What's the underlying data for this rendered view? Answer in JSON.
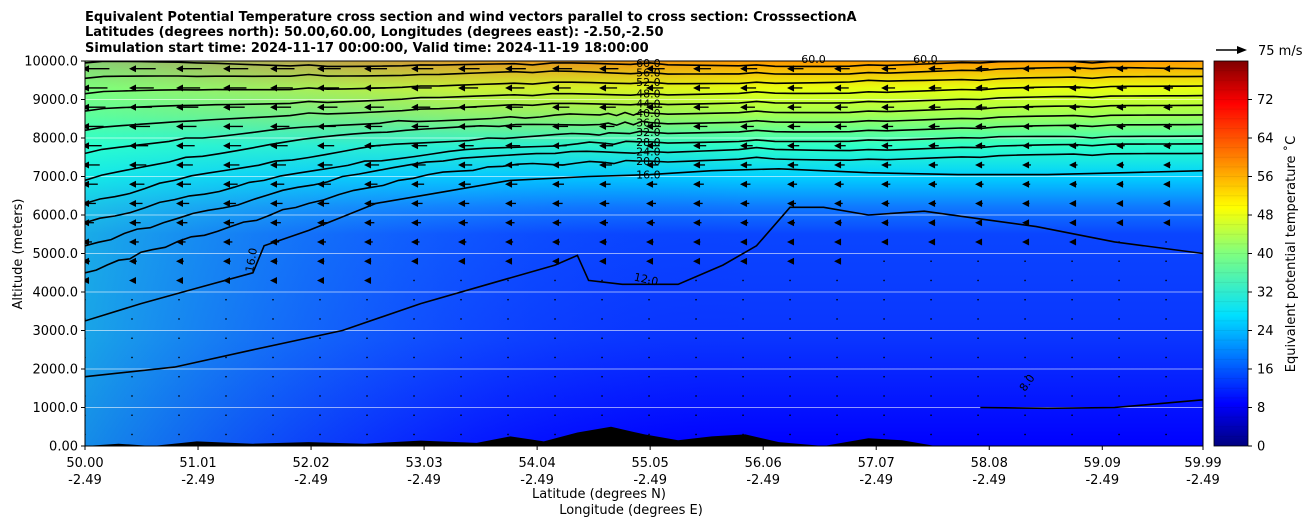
{
  "chart_data": {
    "type": "heatmap",
    "title_lines": [
      "Equivalent Potential Temperature cross section and wind vectors parallel to cross section: CrosssectionA",
      "Latitudes (degrees north): 50.00,60.00, Longitudes (degrees east): -2.50,-2.50",
      "Simulation start time: 2024-11-17 00:00:00, Valid time: 2024-11-19 18:00:00"
    ],
    "ylabel": "Altitude (meters)",
    "xlabel_line1": "Latitude (degrees N)",
    "xlabel_line2": "Longitude (degrees E)",
    "ylim": [
      0,
      10000
    ],
    "xlim": [
      50.0,
      59.99
    ],
    "y_ticks": [
      "0.00",
      "1000.0",
      "2000.0",
      "3000.0",
      "4000.0",
      "5000.0",
      "6000.0",
      "7000.0",
      "8000.0",
      "9000.0",
      "10000.0"
    ],
    "y_tick_values": [
      0,
      1000,
      2000,
      3000,
      4000,
      5000,
      6000,
      7000,
      8000,
      9000,
      10000
    ],
    "x_ticks": [
      {
        "lat": "50.00",
        "lon": "-2.49",
        "value": 50.0
      },
      {
        "lat": "51.01",
        "lon": "-2.49",
        "value": 51.01
      },
      {
        "lat": "52.02",
        "lon": "-2.49",
        "value": 52.02
      },
      {
        "lat": "53.03",
        "lon": "-2.49",
        "value": 53.03
      },
      {
        "lat": "54.04",
        "lon": "-2.49",
        "value": 54.04
      },
      {
        "lat": "55.05",
        "lon": "-2.49",
        "value": 55.05
      },
      {
        "lat": "56.06",
        "lon": "-2.49",
        "value": 56.06
      },
      {
        "lat": "57.07",
        "lon": "-2.49",
        "value": 57.07
      },
      {
        "lat": "58.08",
        "lon": "-2.49",
        "value": 58.08
      },
      {
        "lat": "59.09",
        "lon": "-2.49",
        "value": 59.09
      },
      {
        "lat": "59.99",
        "lon": "-2.49",
        "value": 59.99
      }
    ],
    "grid": "horizontal",
    "colorbar": {
      "label": "Equivalent potential temperature ˚C",
      "range": [
        0,
        80
      ],
      "step": 2,
      "ticks": [
        "0",
        "8",
        "16",
        "24",
        "32",
        "40",
        "48",
        "56",
        "64",
        "72"
      ],
      "tick_values": [
        0,
        8,
        16,
        24,
        32,
        40,
        48,
        56,
        64,
        72
      ],
      "colormap": "jet"
    },
    "quiver_key": "75 m/s",
    "contour_labels": [
      "60.0",
      "56.0",
      "52.0",
      "48.0",
      "44.0",
      "40.0",
      "36.0",
      "32.0",
      "28.0",
      "24.0",
      "20.0",
      "16.0",
      "12.0",
      "8.0"
    ],
    "contour_levels": [
      8,
      12,
      16,
      20,
      24,
      28,
      32,
      36,
      40,
      44,
      48,
      52,
      56,
      60
    ],
    "contour_series": [
      {
        "name": "8.0",
        "points": [
          [
            58.0,
            1000
          ],
          [
            58.6,
            980
          ],
          [
            59.2,
            1000
          ],
          [
            59.99,
            1200
          ]
        ]
      },
      {
        "name": "12.0",
        "points": [
          [
            50.0,
            1800
          ],
          [
            50.8,
            2050
          ],
          [
            51.5,
            2500
          ],
          [
            52.3,
            3000
          ],
          [
            53.0,
            3700
          ],
          [
            53.6,
            4200
          ],
          [
            54.2,
            4700
          ],
          [
            54.4,
            4950
          ],
          [
            54.5,
            4300
          ],
          [
            54.8,
            4200
          ],
          [
            55.3,
            4200
          ],
          [
            55.7,
            4700
          ],
          [
            56.0,
            5200
          ],
          [
            56.3,
            6200
          ],
          [
            56.6,
            6200
          ],
          [
            57.0,
            6000
          ],
          [
            57.5,
            6100
          ],
          [
            58.0,
            5900
          ],
          [
            58.5,
            5700
          ],
          [
            59.2,
            5300
          ],
          [
            59.99,
            5000
          ]
        ]
      },
      {
        "name": "16.0",
        "points": [
          [
            50.0,
            3250
          ],
          [
            50.5,
            3700
          ],
          [
            51.0,
            4100
          ],
          [
            51.5,
            4500
          ],
          [
            51.6,
            5200
          ],
          [
            52.0,
            5600
          ],
          [
            52.6,
            6300
          ],
          [
            53.2,
            6600
          ],
          [
            53.8,
            6900
          ],
          [
            54.5,
            7000
          ],
          [
            55.05,
            7050
          ],
          [
            55.6,
            7150
          ],
          [
            56.2,
            7200
          ],
          [
            57.0,
            7100
          ],
          [
            57.8,
            7050
          ],
          [
            58.6,
            7050
          ],
          [
            59.3,
            7100
          ],
          [
            59.99,
            7150
          ]
        ]
      },
      {
        "name": "20.0",
        "points": [
          [
            50.0,
            4500
          ],
          [
            50.6,
            5100
          ],
          [
            51.3,
            5700
          ],
          [
            52.0,
            6300
          ],
          [
            52.8,
            6900
          ],
          [
            53.6,
            7250
          ],
          [
            54.4,
            7350
          ],
          [
            55.05,
            7400
          ],
          [
            56.0,
            7500
          ],
          [
            57.0,
            7450
          ],
          [
            58.0,
            7500
          ],
          [
            59.0,
            7550
          ],
          [
            59.99,
            7600
          ]
        ]
      },
      {
        "name": "24.0",
        "points": [
          [
            50.0,
            5200
          ],
          [
            50.7,
            5800
          ],
          [
            51.5,
            6400
          ],
          [
            52.3,
            7000
          ],
          [
            53.2,
            7400
          ],
          [
            54.2,
            7600
          ],
          [
            55.05,
            7650
          ],
          [
            56.0,
            7750
          ],
          [
            57.0,
            7700
          ],
          [
            58.0,
            7750
          ],
          [
            59.0,
            7800
          ],
          [
            59.99,
            7850
          ]
        ]
      },
      {
        "name": "28.0",
        "points": [
          [
            50.0,
            5800
          ],
          [
            50.8,
            6400
          ],
          [
            51.6,
            6900
          ],
          [
            52.5,
            7400
          ],
          [
            53.4,
            7700
          ],
          [
            54.4,
            7850
          ],
          [
            55.05,
            7900
          ],
          [
            56.0,
            7950
          ],
          [
            57.0,
            7950
          ],
          [
            58.0,
            8000
          ],
          [
            59.0,
            8000
          ],
          [
            59.99,
            8050
          ]
        ]
      },
      {
        "name": "32.0",
        "points": [
          [
            50.0,
            6300
          ],
          [
            50.8,
            6900
          ],
          [
            51.7,
            7400
          ],
          [
            52.6,
            7800
          ],
          [
            53.6,
            8000
          ],
          [
            54.5,
            8100
          ],
          [
            55.05,
            8150
          ],
          [
            56.0,
            8200
          ],
          [
            57.0,
            8200
          ],
          [
            58.0,
            8250
          ],
          [
            59.0,
            8300
          ],
          [
            59.99,
            8350
          ]
        ]
      },
      {
        "name": "36.0",
        "points": [
          [
            50.0,
            6900
          ],
          [
            50.9,
            7500
          ],
          [
            51.8,
            7900
          ],
          [
            52.7,
            8150
          ],
          [
            53.7,
            8300
          ],
          [
            54.6,
            8350
          ],
          [
            55.05,
            8400
          ],
          [
            56.0,
            8450
          ],
          [
            57.0,
            8450
          ],
          [
            58.0,
            8500
          ],
          [
            59.0,
            8550
          ],
          [
            59.99,
            8600
          ]
        ]
      },
      {
        "name": "40.0",
        "points": [
          [
            50.0,
            7600
          ],
          [
            50.9,
            8000
          ],
          [
            51.8,
            8250
          ],
          [
            52.8,
            8450
          ],
          [
            53.8,
            8550
          ],
          [
            54.6,
            8600
          ],
          [
            55.05,
            8650
          ],
          [
            56.0,
            8700
          ],
          [
            57.0,
            8700
          ],
          [
            58.0,
            8750
          ],
          [
            59.0,
            8800
          ],
          [
            59.99,
            8850
          ]
        ]
      },
      {
        "name": "44.0",
        "points": [
          [
            50.0,
            8200
          ],
          [
            51.0,
            8450
          ],
          [
            52.0,
            8650
          ],
          [
            53.0,
            8750
          ],
          [
            54.0,
            8850
          ],
          [
            55.05,
            8900
          ],
          [
            56.0,
            8950
          ],
          [
            57.0,
            8950
          ],
          [
            58.0,
            9000
          ],
          [
            59.0,
            9050
          ],
          [
            59.99,
            9100
          ]
        ]
      },
      {
        "name": "48.0",
        "points": [
          [
            50.0,
            8700
          ],
          [
            51.0,
            8850
          ],
          [
            52.0,
            8950
          ],
          [
            53.0,
            9050
          ],
          [
            54.0,
            9100
          ],
          [
            55.05,
            9150
          ],
          [
            56.0,
            9200
          ],
          [
            57.0,
            9200
          ],
          [
            58.0,
            9250
          ],
          [
            59.0,
            9300
          ],
          [
            59.99,
            9350
          ]
        ]
      },
      {
        "name": "52.0",
        "points": [
          [
            50.0,
            9150
          ],
          [
            51.0,
            9250
          ],
          [
            52.0,
            9300
          ],
          [
            53.0,
            9350
          ],
          [
            54.0,
            9400
          ],
          [
            55.05,
            9450
          ],
          [
            56.0,
            9450
          ],
          [
            57.0,
            9500
          ],
          [
            58.0,
            9500
          ],
          [
            59.0,
            9550
          ],
          [
            59.99,
            9600
          ]
        ]
      },
      {
        "name": "56.0",
        "points": [
          [
            50.0,
            9550
          ],
          [
            51.0,
            9600
          ],
          [
            52.0,
            9650
          ],
          [
            53.0,
            9650
          ],
          [
            54.0,
            9700
          ],
          [
            55.05,
            9700
          ],
          [
            56.0,
            9700
          ],
          [
            57.0,
            9700
          ],
          [
            58.0,
            9750
          ],
          [
            59.0,
            9800
          ],
          [
            59.99,
            9800
          ]
        ]
      },
      {
        "name": "60.0",
        "points": [
          [
            50.0,
            9950
          ],
          [
            51.0,
            9950
          ],
          [
            52.0,
            9900
          ],
          [
            53.0,
            9900
          ],
          [
            54.0,
            9900
          ],
          [
            55.05,
            9950
          ],
          [
            56.0,
            9900
          ],
          [
            57.0,
            9900
          ],
          [
            58.0,
            9950
          ],
          [
            59.0,
            9950
          ],
          [
            59.99,
            10000
          ]
        ]
      }
    ],
    "terrain": [
      [
        50.0,
        0
      ],
      [
        50.3,
        60
      ],
      [
        50.6,
        0
      ],
      [
        51.0,
        120
      ],
      [
        51.5,
        60
      ],
      [
        52.0,
        100
      ],
      [
        52.5,
        60
      ],
      [
        53.0,
        140
      ],
      [
        53.5,
        80
      ],
      [
        53.8,
        250
      ],
      [
        54.1,
        120
      ],
      [
        54.4,
        350
      ],
      [
        54.7,
        500
      ],
      [
        55.0,
        300
      ],
      [
        55.3,
        150
      ],
      [
        55.6,
        250
      ],
      [
        55.9,
        300
      ],
      [
        56.2,
        100
      ],
      [
        56.6,
        0
      ],
      [
        57.0,
        200
      ],
      [
        57.3,
        150
      ],
      [
        57.6,
        0
      ],
      [
        59.99,
        0
      ]
    ]
  }
}
